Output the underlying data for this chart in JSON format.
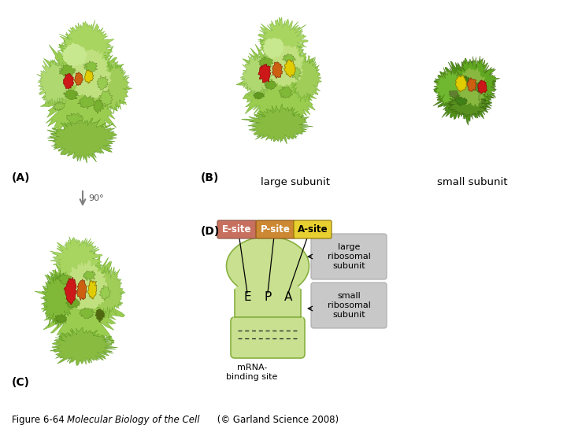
{
  "bg_color": "#ffffff",
  "caption_normal": "Figure 6-64  ",
  "caption_italic": "Molecular Biology of the Cell",
  "caption_normal2": " (© Garland Science 2008)",
  "label_A": "(A)",
  "label_B": "(B)",
  "label_C": "(C)",
  "label_D": "(D)",
  "label_large_subunit": "large subunit",
  "label_small_subunit": "small subunit",
  "label_90": "90°",
  "esite_label": "E-site",
  "psite_label": "P-site",
  "asite_label": "A-site",
  "large_ribo_label": "large\nribosomal\nsubunit",
  "small_ribo_label": "small\nribosomal\nsubunit",
  "mrna_label": "mRNA-\nbinding site",
  "esite_color": "#c87060",
  "psite_color": "#cc8833",
  "asite_color": "#e8d030",
  "ribosome_light": "#b8d888",
  "ribosome_mid": "#90c050",
  "ribosome_dark": "#508820",
  "ribosome_darker": "#406818",
  "schematic_color": "#c8e090",
  "schematic_edge": "#88b040",
  "gray_box": "#c8c8c8",
  "gray_box_edge": "#aaaaaa",
  "red_trna": "#cc1818",
  "orange_trna": "#cc6010",
  "yellow_trna": "#e0cc00",
  "arrow_gray": "#808080"
}
